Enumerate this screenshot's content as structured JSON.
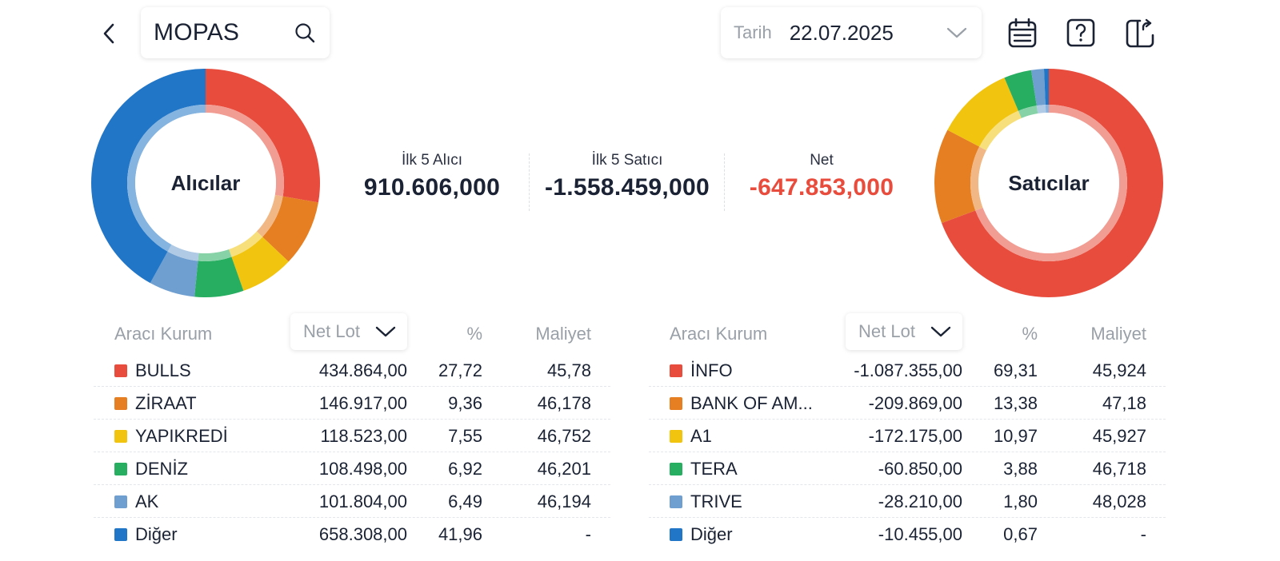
{
  "header": {
    "back_icon": "chevron-left-icon",
    "symbol": "MOPAS",
    "search_icon": "search-icon",
    "date_label": "Tarih",
    "date_value": "22.07.2025",
    "date_dropdown_icon": "chevron-down-icon",
    "calendar_icon": "calendar-icon",
    "help_icon": "question-icon",
    "export_icon": "export-icon"
  },
  "buyers_chart": {
    "label": "Alıcılar",
    "segments": [
      {
        "name": "BULLS",
        "pct": 27.72,
        "color": "#e84c3d"
      },
      {
        "name": "ZİRAAT",
        "pct": 9.36,
        "color": "#e67e22"
      },
      {
        "name": "YAPIKREDİ",
        "pct": 7.55,
        "color": "#f1c40f"
      },
      {
        "name": "DENİZ",
        "pct": 6.92,
        "color": "#27ae60"
      },
      {
        "name": "AK",
        "pct": 6.49,
        "color": "#6f9fd0"
      },
      {
        "name": "Diğer",
        "pct": 41.96,
        "color": "#2176c7"
      }
    ]
  },
  "sellers_chart": {
    "label": "Satıcılar",
    "segments": [
      {
        "name": "İNFO",
        "pct": 69.31,
        "color": "#e84c3d"
      },
      {
        "name": "BANK OF AM...",
        "pct": 13.38,
        "color": "#e67e22"
      },
      {
        "name": "A1",
        "pct": 10.97,
        "color": "#f1c40f"
      },
      {
        "name": "TERA",
        "pct": 3.88,
        "color": "#27ae60"
      },
      {
        "name": "TRIVE",
        "pct": 1.8,
        "color": "#6f9fd0"
      },
      {
        "name": "Diğer",
        "pct": 0.67,
        "color": "#2176c7"
      }
    ]
  },
  "summary": {
    "buyers_label": "İlk 5 Alıcı",
    "buyers_value": "910.606,000",
    "sellers_label": "İlk 5 Satıcı",
    "sellers_value": "-1.558.459,000",
    "net_label": "Net",
    "net_value": "-647.853,000",
    "net_color": "#e84c3d"
  },
  "table_headers": {
    "broker": "Aracı Kurum",
    "sort": "Net Lot",
    "pct": "%",
    "cost": "Maliyet"
  },
  "buyers": [
    {
      "name": "BULLS",
      "lot": "434.864,00",
      "pct": "27,72",
      "cost": "45,78",
      "color": "#e84c3d"
    },
    {
      "name": "ZİRAAT",
      "lot": "146.917,00",
      "pct": "9,36",
      "cost": "46,178",
      "color": "#e67e22"
    },
    {
      "name": "YAPIKREDİ",
      "lot": "118.523,00",
      "pct": "7,55",
      "cost": "46,752",
      "color": "#f1c40f"
    },
    {
      "name": "DENİZ",
      "lot": "108.498,00",
      "pct": "6,92",
      "cost": "46,201",
      "color": "#27ae60"
    },
    {
      "name": "AK",
      "lot": "101.804,00",
      "pct": "6,49",
      "cost": "46,194",
      "color": "#6f9fd0"
    },
    {
      "name": "Diğer",
      "lot": "658.308,00",
      "pct": "41,96",
      "cost": "-",
      "color": "#2176c7"
    }
  ],
  "sellers": [
    {
      "name": "İNFO",
      "lot": "-1.087.355,00",
      "pct": "69,31",
      "cost": "45,924",
      "color": "#e84c3d"
    },
    {
      "name": "BANK OF AM...",
      "lot": "-209.869,00",
      "pct": "13,38",
      "cost": "47,18",
      "color": "#e67e22"
    },
    {
      "name": "A1",
      "lot": "-172.175,00",
      "pct": "10,97",
      "cost": "45,927",
      "color": "#f1c40f"
    },
    {
      "name": "TERA",
      "lot": "-60.850,00",
      "pct": "3,88",
      "cost": "46,718",
      "color": "#27ae60"
    },
    {
      "name": "TRIVE",
      "lot": "-28.210,00",
      "pct": "1,80",
      "cost": "48,028",
      "color": "#6f9fd0"
    },
    {
      "name": "Diğer",
      "lot": "-10.455,00",
      "pct": "0,67",
      "cost": "-",
      "color": "#2176c7"
    }
  ]
}
